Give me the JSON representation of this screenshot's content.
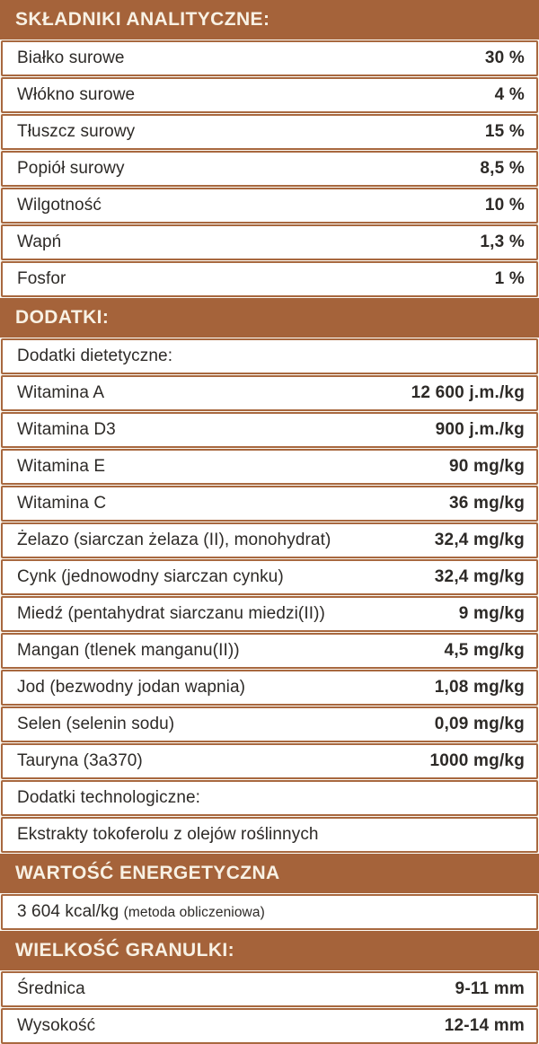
{
  "colors": {
    "brown": "#A5633A",
    "row-border": "#A8683F",
    "row-bg": "#FFFFFF",
    "page-bg": "#FCFAF4",
    "header-text": "#F8F1E4",
    "text": "#2D2A27"
  },
  "blocks": [
    {
      "kind": "header",
      "text": "SKŁADNIKI ANALITYCZNE:"
    },
    {
      "kind": "row",
      "label": "Białko surowe",
      "value": "30 %"
    },
    {
      "kind": "row",
      "label": "Włókno surowe",
      "value": "4 %"
    },
    {
      "kind": "row",
      "label": "Tłuszcz surowy",
      "value": "15 %"
    },
    {
      "kind": "row",
      "label": "Popiół surowy",
      "value": "8,5 %"
    },
    {
      "kind": "row",
      "label": "Wilgotność",
      "value": "10 %"
    },
    {
      "kind": "row",
      "label": "Wapń",
      "value": "1,3 %"
    },
    {
      "kind": "row",
      "label": "Fosfor",
      "value": "1 %"
    },
    {
      "kind": "header",
      "text": "DODATKI:"
    },
    {
      "kind": "row",
      "label": "Dodatki dietetyczne:",
      "value": ""
    },
    {
      "kind": "row",
      "label": "Witamina A",
      "value": "12 600 j.m./kg"
    },
    {
      "kind": "row",
      "label": "Witamina D3",
      "value": "900 j.m./kg"
    },
    {
      "kind": "row",
      "label": "Witamina E",
      "value": "90 mg/kg"
    },
    {
      "kind": "row",
      "label": "Witamina C",
      "value": "36 mg/kg"
    },
    {
      "kind": "row",
      "label": "Żelazo (siarczan żelaza (II), monohydrat)",
      "value": "32,4 mg/kg"
    },
    {
      "kind": "row",
      "label": "Cynk (jednowodny siarczan cynku)",
      "value": "32,4 mg/kg"
    },
    {
      "kind": "row",
      "label": "Miedź (pentahydrat siarczanu miedzi(II))",
      "value": "9 mg/kg"
    },
    {
      "kind": "row",
      "label": "Mangan (tlenek manganu(II))",
      "value": "4,5 mg/kg"
    },
    {
      "kind": "row",
      "label": "Jod (bezwodny jodan wapnia)",
      "value": "1,08 mg/kg"
    },
    {
      "kind": "row",
      "label": "Selen (selenin sodu)",
      "value": "0,09 mg/kg"
    },
    {
      "kind": "row",
      "label": "Tauryna (3a370)",
      "value": "1000 mg/kg"
    },
    {
      "kind": "row",
      "label": "Dodatki technologiczne:",
      "value": ""
    },
    {
      "kind": "row",
      "label": "Ekstrakty tokoferolu z olejów roślinnych",
      "value": ""
    },
    {
      "kind": "header",
      "text": "WARTOŚĆ ENERGETYCZNA"
    },
    {
      "kind": "row",
      "label": "3 604 kcal/kg",
      "note": "(metoda obliczeniowa)",
      "value": ""
    },
    {
      "kind": "header",
      "text": "WIELKOŚĆ GRANULKI:"
    },
    {
      "kind": "row",
      "label": "Średnica",
      "value": "9-11 mm"
    },
    {
      "kind": "row",
      "label": "Wysokość",
      "value": "12-14 mm"
    }
  ]
}
